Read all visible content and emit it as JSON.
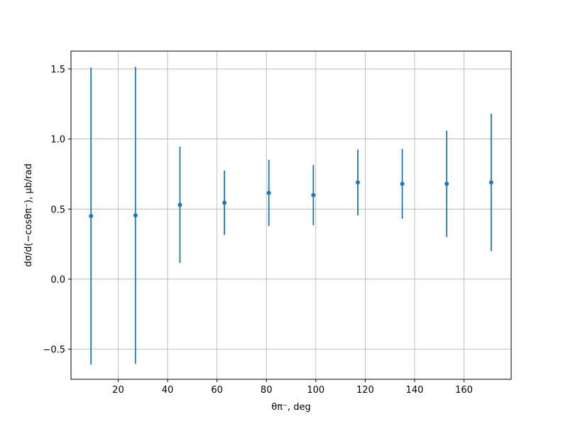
{
  "chart_data": {
    "type": "errorbar",
    "x_label": "θπ⁻, deg",
    "y_label": "dσ/d(−cosθπ⁻), μb/rad",
    "color": "#1f77b4",
    "x": [
      9,
      27,
      45,
      63,
      81,
      99,
      117,
      135,
      153,
      171
    ],
    "values": [
      0.45,
      0.455,
      0.53,
      0.545,
      0.615,
      0.6,
      0.69,
      0.68,
      0.68,
      0.69
    ],
    "errors": [
      1.06,
      1.06,
      0.415,
      0.23,
      0.235,
      0.215,
      0.235,
      0.25,
      0.38,
      0.49
    ],
    "xlim": [
      0.9,
      179.1
    ],
    "ylim": [
      -0.715,
      1.627
    ],
    "xticks": [
      20,
      40,
      60,
      80,
      100,
      120,
      140,
      160
    ],
    "yticks": [
      {
        "value": -0.5,
        "label": "−0.5"
      },
      {
        "value": 0,
        "label": "0.0"
      },
      0.5,
      {
        "value": 1,
        "label": "1.0"
      },
      1.5
    ],
    "grid": true
  }
}
